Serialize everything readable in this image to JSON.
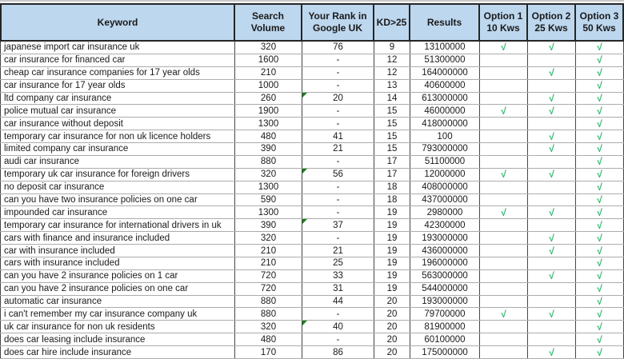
{
  "table": {
    "columns": [
      {
        "id": "keyword",
        "label": "Keyword"
      },
      {
        "id": "volume",
        "label": "Search\nVolume"
      },
      {
        "id": "rank",
        "label": "Your Rank in\nGoogle UK"
      },
      {
        "id": "kd",
        "label": "KD>25"
      },
      {
        "id": "results",
        "label": "Results"
      },
      {
        "id": "opt1",
        "label": "Option 1\n10 Kws"
      },
      {
        "id": "opt2",
        "label": "Option 2\n25 Kws"
      },
      {
        "id": "opt3",
        "label": "Option 3\n50 Kws"
      }
    ],
    "check_glyph": "√",
    "colors": {
      "header_bg": "#BDD7EE",
      "check_green": "#22B366",
      "flag_green": "#1E7D1E"
    },
    "rows": [
      {
        "keyword": "japanese import car insurance uk",
        "volume": "320",
        "rank": "76",
        "rank_flag": false,
        "kd": "9",
        "results": "13100000",
        "opt1": true,
        "opt2": true,
        "opt3": true
      },
      {
        "keyword": "car insurance for financed car",
        "volume": "1600",
        "rank": "-",
        "rank_flag": false,
        "kd": "12",
        "results": "51300000",
        "opt1": false,
        "opt2": false,
        "opt3": true
      },
      {
        "keyword": "cheap car insurance companies for 17 year olds",
        "volume": "210",
        "rank": "-",
        "rank_flag": false,
        "kd": "12",
        "results": "164000000",
        "opt1": false,
        "opt2": true,
        "opt3": true
      },
      {
        "keyword": "car insurance for 17 year olds",
        "volume": "1000",
        "rank": "-",
        "rank_flag": false,
        "kd": "13",
        "results": "40600000",
        "opt1": false,
        "opt2": false,
        "opt3": true
      },
      {
        "keyword": "ltd company car insurance",
        "volume": "260",
        "rank": "20",
        "rank_flag": true,
        "kd": "14",
        "results": "613000000",
        "opt1": false,
        "opt2": true,
        "opt3": true
      },
      {
        "keyword": "police mutual car insurance",
        "volume": "1900",
        "rank": "-",
        "rank_flag": false,
        "kd": "15",
        "results": "46000000",
        "opt1": true,
        "opt2": true,
        "opt3": true
      },
      {
        "keyword": "car insurance without deposit",
        "volume": "1300",
        "rank": "-",
        "rank_flag": false,
        "kd": "15",
        "results": "418000000",
        "opt1": false,
        "opt2": false,
        "opt3": true
      },
      {
        "keyword": "temporary car insurance for non uk licence holders",
        "volume": "480",
        "rank": "41",
        "rank_flag": false,
        "kd": "15",
        "results": "100",
        "opt1": false,
        "opt2": true,
        "opt3": true
      },
      {
        "keyword": "limited company car insurance",
        "volume": "390",
        "rank": "21",
        "rank_flag": false,
        "kd": "15",
        "results": "793000000",
        "opt1": false,
        "opt2": true,
        "opt3": true
      },
      {
        "keyword": "audi car insurance",
        "volume": "880",
        "rank": "-",
        "rank_flag": false,
        "kd": "17",
        "results": "51100000",
        "opt1": false,
        "opt2": false,
        "opt3": true
      },
      {
        "keyword": "temporary uk car insurance for foreign drivers",
        "volume": "320",
        "rank": "56",
        "rank_flag": true,
        "kd": "17",
        "results": "12000000",
        "opt1": true,
        "opt2": true,
        "opt3": true
      },
      {
        "keyword": "no deposit car insurance",
        "volume": "1300",
        "rank": "-",
        "rank_flag": false,
        "kd": "18",
        "results": "408000000",
        "opt1": false,
        "opt2": false,
        "opt3": true
      },
      {
        "keyword": "can you have two insurance policies on one car",
        "volume": "590",
        "rank": "-",
        "rank_flag": false,
        "kd": "18",
        "results": "437000000",
        "opt1": false,
        "opt2": false,
        "opt3": true
      },
      {
        "keyword": "impounded car insurance",
        "volume": "1300",
        "rank": "-",
        "rank_flag": false,
        "kd": "19",
        "results": "2980000",
        "opt1": true,
        "opt2": true,
        "opt3": true
      },
      {
        "keyword": "temporary car insurance for international drivers in uk",
        "volume": "390",
        "rank": "37",
        "rank_flag": true,
        "kd": "19",
        "results": "42300000",
        "opt1": false,
        "opt2": false,
        "opt3": true
      },
      {
        "keyword": "cars with finance and insurance included",
        "volume": "320",
        "rank": "-",
        "rank_flag": false,
        "kd": "19",
        "results": "193000000",
        "opt1": false,
        "opt2": true,
        "opt3": true
      },
      {
        "keyword": "car with insurance included",
        "volume": "210",
        "rank": "21",
        "rank_flag": false,
        "kd": "19",
        "results": "436000000",
        "opt1": false,
        "opt2": true,
        "opt3": true
      },
      {
        "keyword": "cars with insurance included",
        "volume": "210",
        "rank": "25",
        "rank_flag": false,
        "kd": "19",
        "results": "196000000",
        "opt1": false,
        "opt2": false,
        "opt3": true
      },
      {
        "keyword": "can you have 2 insurance policies on 1 car",
        "volume": "720",
        "rank": "33",
        "rank_flag": false,
        "kd": "19",
        "results": "563000000",
        "opt1": false,
        "opt2": true,
        "opt3": true
      },
      {
        "keyword": "can you have 2 insurance policies on one car",
        "volume": "720",
        "rank": "31",
        "rank_flag": false,
        "kd": "19",
        "results": "544000000",
        "opt1": false,
        "opt2": false,
        "opt3": true
      },
      {
        "keyword": "automatic car insurance",
        "volume": "880",
        "rank": "44",
        "rank_flag": false,
        "kd": "20",
        "results": "193000000",
        "opt1": false,
        "opt2": false,
        "opt3": true
      },
      {
        "keyword": "i can't remember my car insurance company uk",
        "volume": "880",
        "rank": "-",
        "rank_flag": false,
        "kd": "20",
        "results": "79700000",
        "opt1": true,
        "opt2": true,
        "opt3": true
      },
      {
        "keyword": "uk car insurance for non uk residents",
        "volume": "320",
        "rank": "40",
        "rank_flag": true,
        "kd": "20",
        "results": "81900000",
        "opt1": false,
        "opt2": false,
        "opt3": true
      },
      {
        "keyword": "does car leasing include insurance",
        "volume": "480",
        "rank": "-",
        "rank_flag": false,
        "kd": "20",
        "results": "60100000",
        "opt1": false,
        "opt2": false,
        "opt3": true
      },
      {
        "keyword": "does car hire include insurance",
        "volume": "170",
        "rank": "86",
        "rank_flag": false,
        "kd": "20",
        "results": "175000000",
        "opt1": false,
        "opt2": true,
        "opt3": true
      }
    ]
  }
}
